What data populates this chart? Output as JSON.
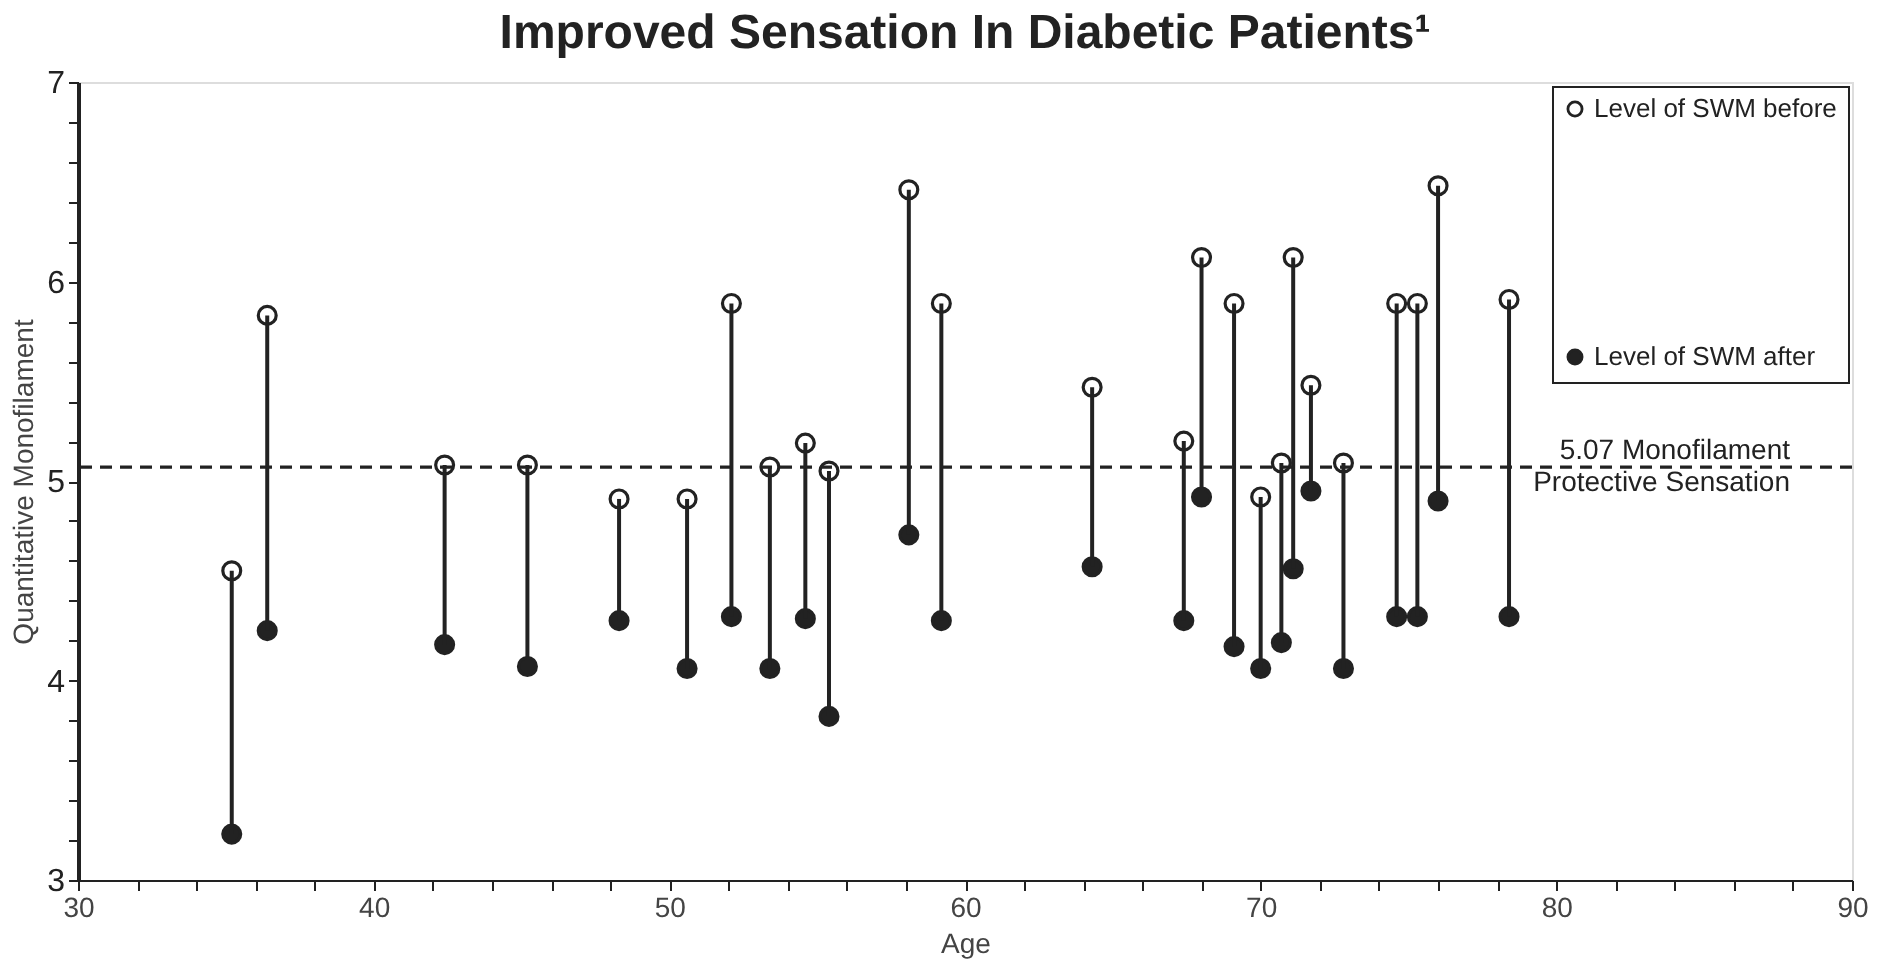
{
  "chart_data": {
    "type": "scatter",
    "title": "Improved Sensation In Diabetic Patients¹",
    "xlabel": "Age",
    "ylabel": "Quantitative Monofilament",
    "x": [
      35.2,
      36.4,
      42.4,
      45.2,
      48.3,
      50.6,
      52.1,
      53.4,
      54.6,
      55.4,
      58.1,
      59.2,
      64.3,
      67.4,
      68.0,
      69.1,
      70.0,
      70.7,
      71.1,
      71.7,
      72.8,
      74.6,
      75.3,
      76.0,
      78.4
    ],
    "series": [
      {
        "name": "Level of SWM before",
        "color": "#ffffff",
        "marker": "circle",
        "values": [
          4.55,
          5.83,
          5.08,
          5.08,
          4.91,
          4.91,
          5.89,
          5.07,
          5.19,
          5.05,
          6.46,
          5.89,
          5.47,
          5.2,
          6.12,
          5.89,
          4.92,
          5.09,
          6.12,
          5.48,
          5.09,
          5.89,
          5.89,
          6.48,
          5.91
        ]
      },
      {
        "name": "Level of SWM after",
        "color": "#222222",
        "marker": "circle",
        "values": [
          3.23,
          4.25,
          4.18,
          4.07,
          4.3,
          4.06,
          4.32,
          4.06,
          4.31,
          3.82,
          4.73,
          4.3,
          4.57,
          4.3,
          4.92,
          4.17,
          4.06,
          4.19,
          4.56,
          4.95,
          4.06,
          4.32,
          4.32,
          4.9,
          4.32
        ],
        "errors": [
          [
            3.23,
            4.55
          ],
          [
            4.25,
            5.83
          ],
          [
            4.18,
            5.08
          ],
          [
            4.07,
            5.08
          ],
          [
            4.3,
            4.91
          ],
          [
            4.06,
            4.91
          ],
          [
            4.32,
            5.89
          ],
          [
            4.06,
            5.07
          ],
          [
            4.31,
            5.19
          ],
          [
            3.82,
            5.05
          ],
          [
            4.73,
            6.46
          ],
          [
            4.3,
            5.89
          ],
          [
            4.57,
            5.47
          ],
          [
            4.3,
            5.2
          ],
          [
            4.92,
            6.12
          ],
          [
            4.17,
            5.89
          ],
          [
            4.06,
            4.92
          ],
          [
            4.19,
            5.09
          ],
          [
            4.56,
            6.12
          ],
          [
            4.95,
            5.48
          ],
          [
            4.06,
            5.09
          ],
          [
            4.32,
            5.89
          ],
          [
            4.32,
            5.89
          ],
          [
            4.9,
            6.48
          ],
          [
            4.32,
            5.91
          ]
        ]
      }
    ],
    "xlim": [
      30,
      90
    ],
    "xticks": [
      30,
      {
        "value": 32,
        "label": null
      },
      {
        "value": 34,
        "label": null
      },
      {
        "value": 36,
        "label": null
      },
      {
        "value": 38,
        "label": null
      },
      40,
      {
        "value": 42,
        "label": null
      },
      {
        "value": 44,
        "label": null
      },
      {
        "value": 46,
        "label": null
      },
      {
        "value": 48,
        "label": null
      },
      50,
      {
        "value": 52,
        "label": null
      },
      {
        "value": 54,
        "label": null
      },
      {
        "value": 56,
        "label": null
      },
      {
        "value": 58,
        "label": null
      },
      60,
      {
        "value": 62,
        "label": null
      },
      {
        "value": 64,
        "label": null
      },
      {
        "value": 66,
        "label": null
      },
      {
        "value": 68,
        "label": null
      },
      70,
      {
        "value": 72,
        "label": null
      },
      {
        "value": 74,
        "label": null
      },
      {
        "value": 76,
        "label": null
      },
      {
        "value": 78,
        "label": null
      },
      80,
      {
        "value": 82,
        "label": null
      },
      {
        "value": 84,
        "label": null
      },
      {
        "value": 86,
        "label": null
      },
      {
        "value": 88,
        "label": null
      },
      90
    ],
    "ylim": [
      3,
      7
    ],
    "yticks": [
      3,
      {
        "value": 3.2,
        "label": null
      },
      {
        "value": 3.4,
        "label": null
      },
      {
        "value": 3.6,
        "label": null
      },
      {
        "value": 3.8,
        "label": null
      },
      4,
      {
        "value": 4.2,
        "label": null
      },
      {
        "value": 4.4,
        "label": null
      },
      {
        "value": 4.6,
        "label": null
      },
      {
        "value": 4.8,
        "label": null
      },
      5,
      {
        "value": 5.2,
        "label": null
      },
      {
        "value": 5.4,
        "label": null
      },
      {
        "value": 5.6,
        "label": null
      },
      {
        "value": 5.8,
        "label": null
      },
      6,
      {
        "value": 6.2,
        "label": null
      },
      {
        "value": 6.4,
        "label": null
      },
      {
        "value": 6.6,
        "label": null
      },
      {
        "value": 6.8,
        "label": null
      },
      7
    ],
    "ref_lines": [
      {
        "axis": "y",
        "value": 5.07,
        "label": "5.07 Monofilament Protective Sensation",
        "line_style": "dashed",
        "color": "#222222"
      }
    ],
    "grid": false,
    "legend": "top right"
  }
}
